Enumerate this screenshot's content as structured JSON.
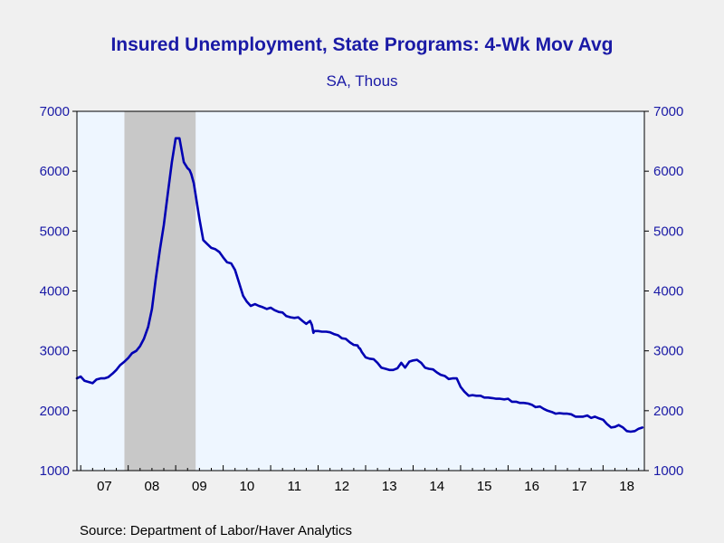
{
  "chart_data": {
    "type": "line",
    "title": "Insured Unemployment, State Programs: 4-Wk Mov Avg",
    "subtitle": "SA, Thous",
    "source": "Source:  Department of Labor/Haver Analytics",
    "ylim": [
      1000,
      7000
    ],
    "yticks": [
      "1000",
      "2000",
      "3000",
      "4000",
      "5000",
      "6000",
      "7000"
    ],
    "xlim": [
      2006.92,
      2018.87
    ],
    "xticks": [
      {
        "label": "07",
        "year": 2007
      },
      {
        "label": "08",
        "year": 2008
      },
      {
        "label": "09",
        "year": 2009
      },
      {
        "label": "10",
        "year": 2010
      },
      {
        "label": "11",
        "year": 2011
      },
      {
        "label": "12",
        "year": 2012
      },
      {
        "label": "13",
        "year": 2013
      },
      {
        "label": "14",
        "year": 2014
      },
      {
        "label": "15",
        "year": 2015
      },
      {
        "label": "16",
        "year": 2016
      },
      {
        "label": "17",
        "year": 2017
      },
      {
        "label": "18",
        "year": 2018
      }
    ],
    "recession": {
      "start": 2007.92,
      "end": 2009.42
    },
    "grid": false,
    "series": [
      {
        "color": "#0000b3",
        "x": [
          2006.92,
          2007.0,
          2007.08,
          2007.17,
          2007.25,
          2007.33,
          2007.42,
          2007.5,
          2007.58,
          2007.67,
          2007.75,
          2007.83,
          2007.92,
          2008.0,
          2008.08,
          2008.17,
          2008.25,
          2008.33,
          2008.42,
          2008.5,
          2008.58,
          2008.67,
          2008.75,
          2008.83,
          2008.92,
          2009.0,
          2009.08,
          2009.17,
          2009.25,
          2009.29,
          2009.33,
          2009.38,
          2009.42,
          2009.5,
          2009.58,
          2009.67,
          2009.75,
          2009.83,
          2009.92,
          2010.0,
          2010.08,
          2010.17,
          2010.25,
          2010.33,
          2010.42,
          2010.5,
          2010.58,
          2010.67,
          2010.75,
          2010.83,
          2010.92,
          2011.0,
          2011.08,
          2011.17,
          2011.25,
          2011.33,
          2011.42,
          2011.5,
          2011.58,
          2011.67,
          2011.75,
          2011.83,
          2011.87,
          2011.9,
          2011.92,
          2012.0,
          2012.08,
          2012.17,
          2012.25,
          2012.33,
          2012.42,
          2012.5,
          2012.58,
          2012.67,
          2012.75,
          2012.83,
          2012.85,
          2012.87,
          2012.88,
          2012.92,
          2013.0,
          2013.08,
          2013.17,
          2013.25,
          2013.33,
          2013.42,
          2013.5,
          2013.58,
          2013.67,
          2013.75,
          2013.83,
          2013.92,
          2014.0,
          2014.08,
          2014.17,
          2014.25,
          2014.33,
          2014.42,
          2014.5,
          2014.58,
          2014.67,
          2014.75,
          2014.83,
          2014.92,
          2015.0,
          2015.08,
          2015.17,
          2015.25,
          2015.33,
          2015.42,
          2015.5,
          2015.58,
          2015.67,
          2015.75,
          2015.83,
          2015.92,
          2016.0,
          2016.08,
          2016.17,
          2016.25,
          2016.33,
          2016.42,
          2016.5,
          2016.58,
          2016.67,
          2016.75,
          2016.83,
          2016.92,
          2017.0,
          2017.08,
          2017.17,
          2017.25,
          2017.33,
          2017.42,
          2017.5,
          2017.58,
          2017.67,
          2017.75,
          2017.83,
          2017.92,
          2018.0,
          2018.08,
          2018.17,
          2018.25,
          2018.33,
          2018.42,
          2018.5,
          2018.58,
          2018.67,
          2018.75,
          2018.83
        ],
        "y": [
          2540,
          2570,
          2500,
          2480,
          2460,
          2520,
          2540,
          2540,
          2560,
          2620,
          2680,
          2760,
          2820,
          2880,
          2960,
          3000,
          3080,
          3200,
          3400,
          3700,
          4200,
          4700,
          5100,
          5600,
          6150,
          6550,
          6550,
          6150,
          6050,
          6020,
          5950,
          5800,
          5600,
          5200,
          4850,
          4780,
          4720,
          4700,
          4650,
          4560,
          4480,
          4460,
          4350,
          4150,
          3920,
          3820,
          3750,
          3780,
          3750,
          3730,
          3700,
          3720,
          3680,
          3650,
          3640,
          3580,
          3560,
          3550,
          3560,
          3500,
          3450,
          3500,
          3430,
          3300,
          3330,
          3330,
          3320,
          3320,
          3310,
          3280,
          3260,
          3210,
          3200,
          3140,
          3100,
          3090,
          3060,
          3040,
          3040,
          2980,
          2890,
          2870,
          2860,
          2800,
          2720,
          2700,
          2680,
          2680,
          2710,
          2800,
          2720,
          2820,
          2840,
          2850,
          2800,
          2720,
          2700,
          2690,
          2640,
          2600,
          2580,
          2530,
          2540,
          2540,
          2400,
          2320,
          2250,
          2260,
          2250,
          2250,
          2220,
          2220,
          2210,
          2200,
          2200,
          2190,
          2200,
          2150,
          2150,
          2130,
          2130,
          2120,
          2100,
          2060,
          2070,
          2030,
          2000,
          1980,
          1950,
          1960,
          1950,
          1950,
          1940,
          1900,
          1900,
          1900,
          1920,
          1880,
          1900,
          1870,
          1850,
          1780,
          1720,
          1730,
          1760,
          1720,
          1660,
          1650,
          1660,
          1700,
          1720
        ]
      }
    ]
  }
}
